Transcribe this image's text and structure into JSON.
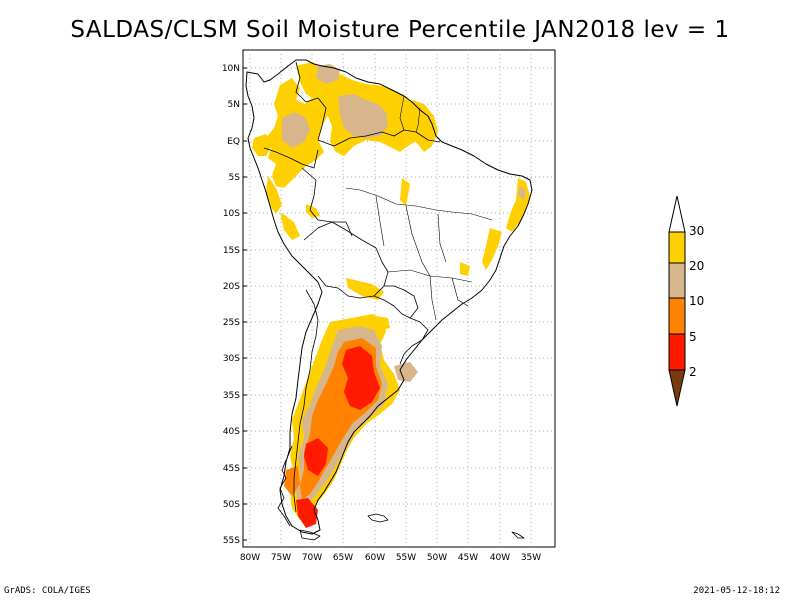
{
  "title": "SALDAS/CLSM Soil Moisture Percentile JAN2018 lev = 1",
  "map": {
    "lat_labels": [
      "10N",
      "5N",
      "EQ",
      "5S",
      "10S",
      "15S",
      "20S",
      "25S",
      "30S",
      "35S",
      "40S",
      "45S",
      "50S",
      "55S"
    ],
    "lon_labels": [
      "80W",
      "75W",
      "70W",
      "65W",
      "60W",
      "55W",
      "50W",
      "45W",
      "40W",
      "35W"
    ]
  },
  "legend": {
    "bins": [
      {
        "label": "30",
        "color": "#ffd000"
      },
      {
        "label": "20",
        "color": "#d8b68c"
      },
      {
        "label": "10",
        "color": "#ff8200"
      },
      {
        "label": "5",
        "color": "#ff1a00"
      },
      {
        "label": "2",
        "color": "#7a3a10"
      }
    ],
    "top_color": "#ffffff"
  },
  "colors": {
    "yellow": "#ffd000",
    "tan": "#d8b68c",
    "orange": "#ff8200",
    "red": "#ff1a00"
  },
  "footer": {
    "left": "GrADS: COLA/IGES",
    "right": "2021-05-12-18:12"
  }
}
